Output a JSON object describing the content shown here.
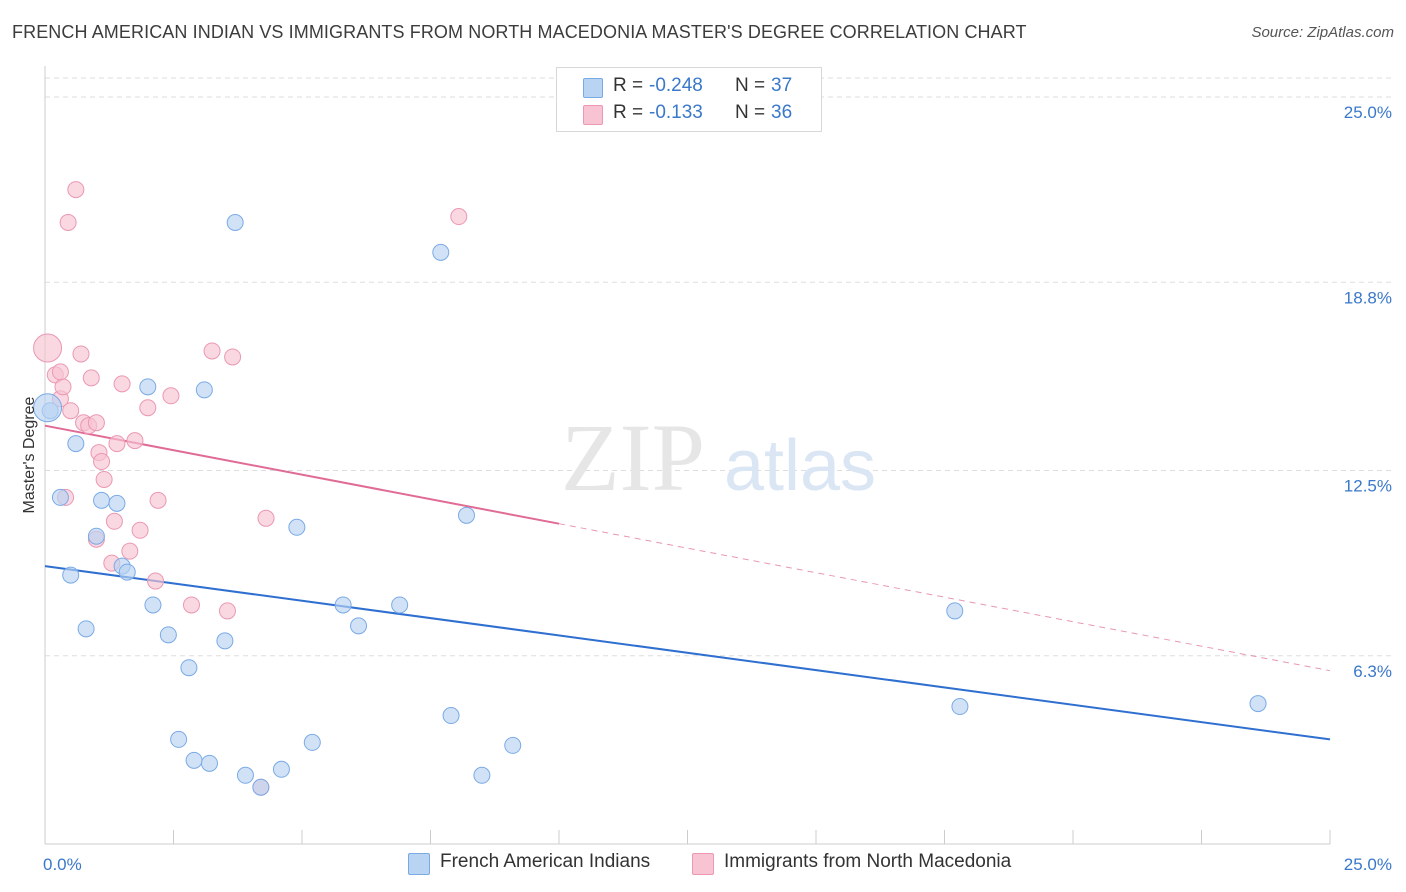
{
  "title": "FRENCH AMERICAN INDIAN VS IMMIGRANTS FROM NORTH MACEDONIA MASTER'S DEGREE CORRELATION CHART",
  "source": "Source: ZipAtlas.com",
  "watermark": {
    "zip": "ZIP",
    "atlas": "atlas"
  },
  "legend": {
    "rows": [
      {
        "r_label": "R =",
        "r_value": "-0.248",
        "n_label": "N =",
        "n_value": "37"
      },
      {
        "r_label": "R =",
        "r_value": "-0.133",
        "n_label": "N =",
        "n_value": "36"
      }
    ]
  },
  "bottom_legend": {
    "series1": "French American Indians",
    "series2": "Immigrants from North Macedonia"
  },
  "colors": {
    "blue_fill": "#b9d3f3",
    "blue_stroke": "#7aaae6",
    "blue_line": "#2f6fd0",
    "pink_fill": "#f8c3d3",
    "pink_stroke": "#eb98b2",
    "pink_line": "#e06b95",
    "grid": "#dddddd",
    "tick_text": "#3a78c9"
  },
  "chart_data": {
    "type": "scatter",
    "title": "FRENCH AMERICAN INDIAN VS IMMIGRANTS FROM NORTH MACEDONIA MASTER'S DEGREE CORRELATION CHART",
    "xlabel": "",
    "ylabel": "Master's Degree",
    "xlim": [
      0,
      25
    ],
    "ylim": [
      0,
      25
    ],
    "x_tick_labels": [
      "0.0%",
      "25.0%"
    ],
    "y_ticks": [
      6.3,
      12.5,
      18.8,
      25.0
    ],
    "y_tick_labels": [
      "6.3%",
      "12.5%",
      "18.8%",
      "25.0%"
    ],
    "series": [
      {
        "name": "French American Indians",
        "r": -0.248,
        "n": 37,
        "trend": {
          "x": [
            0,
            25
          ],
          "y": [
            9.3,
            3.5
          ],
          "dashed_from": null
        },
        "points": [
          [
            0.1,
            14.5
          ],
          [
            0.3,
            11.6
          ],
          [
            0.5,
            9.0
          ],
          [
            0.6,
            13.4
          ],
          [
            0.8,
            7.2
          ],
          [
            1.0,
            10.3
          ],
          [
            1.1,
            11.5
          ],
          [
            1.4,
            11.4
          ],
          [
            1.5,
            9.3
          ],
          [
            1.6,
            9.1
          ],
          [
            2.0,
            15.3
          ],
          [
            2.1,
            8.0
          ],
          [
            2.4,
            7.0
          ],
          [
            2.6,
            3.5
          ],
          [
            2.8,
            5.9
          ],
          [
            2.9,
            2.8
          ],
          [
            3.2,
            2.7
          ],
          [
            3.1,
            15.2
          ],
          [
            3.5,
            6.8
          ],
          [
            3.7,
            20.8
          ],
          [
            3.9,
            2.3
          ],
          [
            4.2,
            1.9
          ],
          [
            4.6,
            2.5
          ],
          [
            4.9,
            10.6
          ],
          [
            5.2,
            3.4
          ],
          [
            5.8,
            8.0
          ],
          [
            6.1,
            7.3
          ],
          [
            6.9,
            8.0
          ],
          [
            7.7,
            19.8
          ],
          [
            7.9,
            4.3
          ],
          [
            8.2,
            11.0
          ],
          [
            8.5,
            2.3
          ],
          [
            9.1,
            3.3
          ],
          [
            17.7,
            7.8
          ],
          [
            17.8,
            4.6
          ],
          [
            23.6,
            4.7
          ],
          [
            0.05,
            14.6
          ]
        ]
      },
      {
        "name": "Immigrants from North Macedonia",
        "r": -0.133,
        "n": 36,
        "trend": {
          "x": [
            0,
            25
          ],
          "y": [
            14.0,
            5.8
          ],
          "dashed_from": 10.0
        },
        "points": [
          [
            0.05,
            16.6
          ],
          [
            0.2,
            15.7
          ],
          [
            0.3,
            14.9
          ],
          [
            0.35,
            15.3
          ],
          [
            0.4,
            11.6
          ],
          [
            0.45,
            20.8
          ],
          [
            0.5,
            14.5
          ],
          [
            0.6,
            21.9
          ],
          [
            0.7,
            16.4
          ],
          [
            0.75,
            14.1
          ],
          [
            0.85,
            14.0
          ],
          [
            0.9,
            15.6
          ],
          [
            1.0,
            14.1
          ],
          [
            1.05,
            13.1
          ],
          [
            1.1,
            12.8
          ],
          [
            1.15,
            12.2
          ],
          [
            1.3,
            9.4
          ],
          [
            1.35,
            10.8
          ],
          [
            1.4,
            13.4
          ],
          [
            1.5,
            15.4
          ],
          [
            1.65,
            9.8
          ],
          [
            1.75,
            13.5
          ],
          [
            1.85,
            10.5
          ],
          [
            2.0,
            14.6
          ],
          [
            2.15,
            8.8
          ],
          [
            2.2,
            11.5
          ],
          [
            2.45,
            15.0
          ],
          [
            2.85,
            8.0
          ],
          [
            3.25,
            16.5
          ],
          [
            3.55,
            7.8
          ],
          [
            3.65,
            16.3
          ],
          [
            4.3,
            10.9
          ],
          [
            4.2,
            1.9
          ],
          [
            8.05,
            21.0
          ],
          [
            0.3,
            15.8
          ],
          [
            1.0,
            10.2
          ]
        ]
      }
    ]
  }
}
